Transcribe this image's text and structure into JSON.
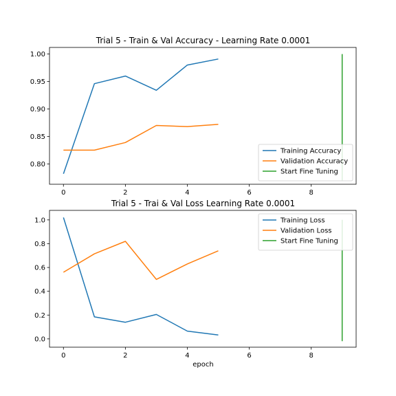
{
  "chart_data": [
    {
      "type": "line",
      "title": "Trial 5 - Train & Val Accuracy - Learning Rate 0.0001",
      "xlabel": "",
      "ylabel": "",
      "xlim": [
        -0.45,
        9.45
      ],
      "ylim": [
        0.763,
        1.012
      ],
      "xticks": [
        0,
        2,
        4,
        6,
        8
      ],
      "yticks": [
        0.8,
        0.85,
        0.9,
        0.95,
        1.0
      ],
      "ytick_decimals": 2,
      "legend_position": "lower-right",
      "series": [
        {
          "name": "Training Accuracy",
          "color": "#1f77b4",
          "x": [
            0,
            1,
            2,
            3,
            4,
            5
          ],
          "y": [
            0.782,
            0.946,
            0.96,
            0.934,
            0.98,
            0.991
          ]
        },
        {
          "name": "Validation Accuracy",
          "color": "#ff7f0e",
          "x": [
            0,
            1,
            2,
            3,
            4,
            5
          ],
          "y": [
            0.825,
            0.825,
            0.839,
            0.87,
            0.868,
            0.872
          ]
        },
        {
          "name": "Start Fine Tuning",
          "color": "#2ca02c",
          "x": [
            9,
            9
          ],
          "y": [
            0.77,
            1.0
          ]
        }
      ]
    },
    {
      "type": "line",
      "title": "Trial 5 - Trai & Val Loss Learning Rate 0.0001",
      "xlabel": "epoch",
      "ylabel": "",
      "xlim": [
        -0.45,
        9.45
      ],
      "ylim": [
        -0.07,
        1.08
      ],
      "xticks": [
        0,
        2,
        4,
        6,
        8
      ],
      "yticks": [
        0.0,
        0.2,
        0.4,
        0.6,
        0.8,
        1.0
      ],
      "ytick_decimals": 1,
      "legend_position": "upper-right",
      "series": [
        {
          "name": "Training Loss",
          "color": "#1f77b4",
          "x": [
            0,
            1,
            2,
            3,
            4,
            5
          ],
          "y": [
            1.02,
            0.185,
            0.14,
            0.205,
            0.065,
            0.032
          ]
        },
        {
          "name": "Validation Loss",
          "color": "#ff7f0e",
          "x": [
            0,
            1,
            2,
            3,
            4,
            5
          ],
          "y": [
            0.56,
            0.715,
            0.82,
            0.5,
            0.63,
            0.74
          ]
        },
        {
          "name": "Start Fine Tuning",
          "color": "#2ca02c",
          "x": [
            9,
            9
          ],
          "y": [
            -0.02,
            1.0
          ]
        }
      ]
    }
  ]
}
